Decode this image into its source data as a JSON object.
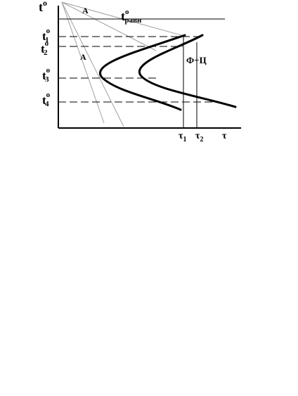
{
  "diagram": {
    "labels": {
      "t_axis": "t",
      "t_axis_sup": "o",
      "t_equilibrium": "t",
      "t_equilibrium_sup": "o",
      "t_equilibrium_sub": "равн",
      "t1": "t",
      "t1_sup": "o",
      "t1_sub": "1",
      "t2": "t",
      "t2_sup": "o",
      "t2_sub": "2",
      "t3": "t",
      "t3_sup": "o",
      "t3_sub": "3",
      "t4": "t",
      "t4_sup": "o",
      "t4_sub": "4",
      "cooling_a_top": "A",
      "cooling_a_left": "A",
      "phase_label": "Ф+Ц",
      "tau1": "τ",
      "tau1_sub": "1",
      "tau2": "τ",
      "tau2_sub": "2",
      "tau_axis": "τ"
    },
    "colors": {
      "curve": "#000000",
      "axis": "#000000",
      "cooling_lines": "#a0a0a0",
      "dashed": "#000000"
    }
  }
}
